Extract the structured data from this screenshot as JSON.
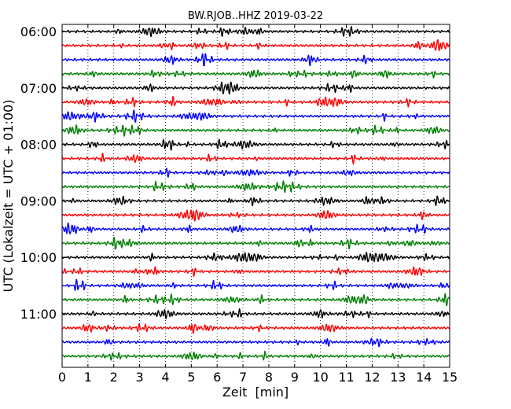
{
  "chart_data": {
    "type": "line",
    "title": "BW.RJOB..HHZ 2019-03-22",
    "xlabel": "Zeit  [min]",
    "ylabel": "UTC (Lokalzeit = UTC + 01:00)",
    "xlim": [
      0,
      15
    ],
    "x_ticks": [
      "0",
      "1",
      "2",
      "3",
      "4",
      "5",
      "6",
      "7",
      "8",
      "9",
      "10",
      "11",
      "12",
      "13",
      "14",
      "15"
    ],
    "y_ticks": [
      "06:00",
      "07:00",
      "08:00",
      "09:00",
      "10:00",
      "11:00"
    ],
    "grid": "vertical dotted lines at each minute",
    "colors": [
      "#000000",
      "#ff0000",
      "#0000ff",
      "#007f00"
    ],
    "series": [
      {
        "start": "06:00",
        "color": "#000000"
      },
      {
        "start": "06:15",
        "color": "#ff0000"
      },
      {
        "start": "06:30",
        "color": "#0000ff"
      },
      {
        "start": "06:45",
        "color": "#007f00"
      },
      {
        "start": "07:00",
        "color": "#000000"
      },
      {
        "start": "07:15",
        "color": "#ff0000"
      },
      {
        "start": "07:30",
        "color": "#0000ff"
      },
      {
        "start": "07:45",
        "color": "#007f00"
      },
      {
        "start": "08:00",
        "color": "#000000"
      },
      {
        "start": "08:15",
        "color": "#ff0000"
      },
      {
        "start": "08:30",
        "color": "#0000ff"
      },
      {
        "start": "08:45",
        "color": "#007f00"
      },
      {
        "start": "09:00",
        "color": "#000000"
      },
      {
        "start": "09:15",
        "color": "#ff0000"
      },
      {
        "start": "09:30",
        "color": "#0000ff"
      },
      {
        "start": "09:45",
        "color": "#007f00"
      },
      {
        "start": "10:00",
        "color": "#000000"
      },
      {
        "start": "10:15",
        "color": "#ff0000"
      },
      {
        "start": "10:30",
        "color": "#0000ff"
      },
      {
        "start": "10:45",
        "color": "#007f00"
      },
      {
        "start": "11:00",
        "color": "#000000"
      },
      {
        "start": "11:15",
        "color": "#ff0000"
      },
      {
        "start": "11:30",
        "color": "#0000ff"
      },
      {
        "start": "11:45",
        "color": "#007f00"
      }
    ]
  }
}
